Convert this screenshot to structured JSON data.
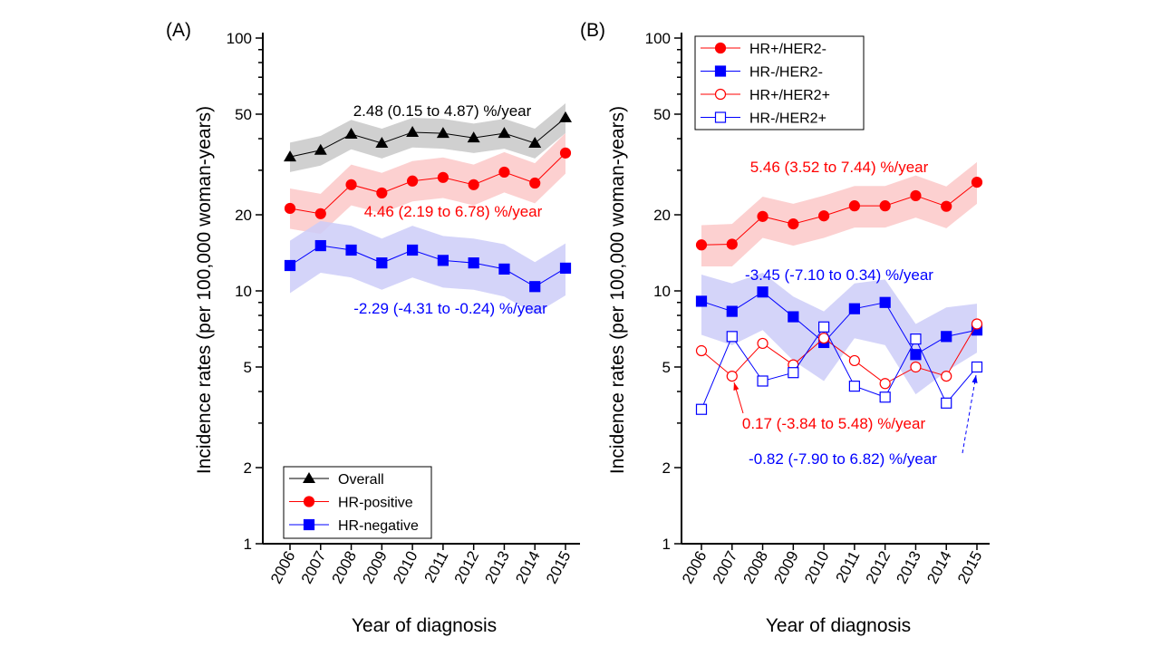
{
  "chart_data": [
    {
      "panel_label": "(A)",
      "type": "line",
      "y_scale": "log",
      "ylim": [
        1,
        100
      ],
      "y_ticks": [
        "1",
        "2",
        "5",
        "10",
        "20",
        "50",
        "100"
      ],
      "xlabel": "Year of diagnosis",
      "ylabel": "Incidence rates (per 100,000 woman-years)",
      "categories": [
        "2006",
        "2007",
        "2008",
        "2009",
        "2010",
        "2011",
        "2012",
        "2013",
        "2014",
        "2015"
      ],
      "grid": false,
      "legend_position": "bottom-left",
      "series": [
        {
          "name": "Overall",
          "color": "#000000",
          "band_color": "#c8c8c8",
          "marker": "triangle-filled",
          "values": [
            33.9,
            36.0,
            41.7,
            38.4,
            42.4,
            42.0,
            40.3,
            42.0,
            38.4,
            48.4
          ],
          "lower": [
            29.5,
            31.3,
            36.3,
            33.4,
            36.9,
            36.5,
            35.1,
            36.5,
            33.4,
            42.1
          ],
          "upper": [
            38.6,
            41.0,
            47.5,
            43.8,
            48.3,
            47.9,
            45.9,
            47.9,
            43.8,
            55.2
          ]
        },
        {
          "name": "HR-positive",
          "color": "#ff0000",
          "band_color": "#fcc8c8",
          "marker": "circle-filled",
          "values": [
            21.2,
            20.2,
            26.3,
            24.4,
            27.2,
            28.1,
            26.3,
            29.5,
            26.7,
            35.1
          ],
          "lower": [
            17.6,
            16.8,
            21.8,
            20.3,
            22.6,
            23.3,
            21.8,
            24.5,
            22.2,
            29.1
          ],
          "upper": [
            25.4,
            24.2,
            31.6,
            29.3,
            32.6,
            33.7,
            31.6,
            35.4,
            32.0,
            42.1
          ]
        },
        {
          "name": "HR-negative",
          "color": "#0000ff",
          "band_color": "#ccccf8",
          "marker": "square-filled",
          "values": [
            12.6,
            15.1,
            14.5,
            12.9,
            14.5,
            13.2,
            12.9,
            12.2,
            10.4,
            12.3
          ],
          "lower": [
            9.8,
            11.8,
            11.3,
            10.1,
            11.3,
            10.3,
            10.1,
            9.5,
            8.1,
            9.6
          ],
          "upper": [
            15.8,
            18.9,
            18.1,
            16.1,
            18.1,
            16.5,
            16.1,
            15.3,
            13.0,
            15.4
          ]
        }
      ],
      "annotations": [
        {
          "text": "2.48 (0.15 to 4.87) %/year",
          "color": "#000000"
        },
        {
          "text": "4.46 (2.19 to 6.78) %/year",
          "color": "#ff0000"
        },
        {
          "text": "-2.29 (-4.31 to -0.24) %/year",
          "color": "#0000ff"
        }
      ]
    },
    {
      "panel_label": "(B)",
      "type": "line",
      "y_scale": "log",
      "ylim": [
        1,
        100
      ],
      "y_ticks": [
        "1",
        "2",
        "5",
        "10",
        "20",
        "50",
        "100"
      ],
      "xlabel": "Year of diagnosis",
      "ylabel": "Incidence rates (per 100,000 woman-years)",
      "categories": [
        "2006",
        "2007",
        "2008",
        "2009",
        "2010",
        "2011",
        "2012",
        "2013",
        "2014",
        "2015"
      ],
      "grid": false,
      "legend_position": "top-left",
      "series": [
        {
          "name": "HR+/HER2-",
          "color": "#ff0000",
          "band_color": "#fcc8c8",
          "marker": "circle-filled",
          "values": [
            15.2,
            15.3,
            19.7,
            18.4,
            19.8,
            21.7,
            21.7,
            23.8,
            21.6,
            26.9
          ],
          "lower": [
            12.5,
            12.5,
            16.2,
            15.1,
            16.2,
            17.8,
            17.8,
            19.5,
            17.7,
            22.1
          ],
          "upper": [
            18.2,
            18.4,
            23.6,
            22.1,
            23.8,
            26.0,
            26.0,
            28.6,
            25.9,
            32.3
          ]
        },
        {
          "name": "HR-/HER2-",
          "color": "#0000ff",
          "band_color": "#ccccf8",
          "marker": "square-filled",
          "values": [
            9.1,
            8.3,
            9.9,
            7.9,
            6.25,
            8.5,
            9.0,
            5.6,
            6.6,
            7.0
          ],
          "lower": [
            6.7,
            6.1,
            7.0,
            5.3,
            4.4,
            6.5,
            6.1,
            3.9,
            4.8,
            5.7
          ],
          "upper": [
            11.6,
            10.7,
            11.8,
            9.5,
            8.3,
            10.7,
            11.1,
            7.4,
            8.6,
            8.9
          ]
        },
        {
          "name": "HR+/HER2+",
          "color": "#ff0000",
          "marker": "circle-open",
          "values": [
            5.8,
            4.6,
            6.2,
            5.1,
            6.5,
            5.3,
            4.3,
            5.0,
            4.6,
            7.4
          ]
        },
        {
          "name": "HR-/HER2+",
          "color": "#0000ff",
          "marker": "square-open",
          "values": [
            3.4,
            6.6,
            4.4,
            4.75,
            7.2,
            4.2,
            3.8,
            6.45,
            3.6,
            5.0
          ]
        }
      ],
      "annotations": [
        {
          "text": "5.46 (3.52 to 7.44) %/year",
          "color": "#ff0000"
        },
        {
          "text": "-3.45 (-7.10 to 0.34) %/year",
          "color": "#0000ff"
        },
        {
          "text": "0.17 (-3.84 to 5.48) %/year",
          "color": "#ff0000"
        },
        {
          "text": "-0.82 (-7.90 to 6.82) %/year",
          "color": "#0000ff"
        }
      ]
    }
  ]
}
